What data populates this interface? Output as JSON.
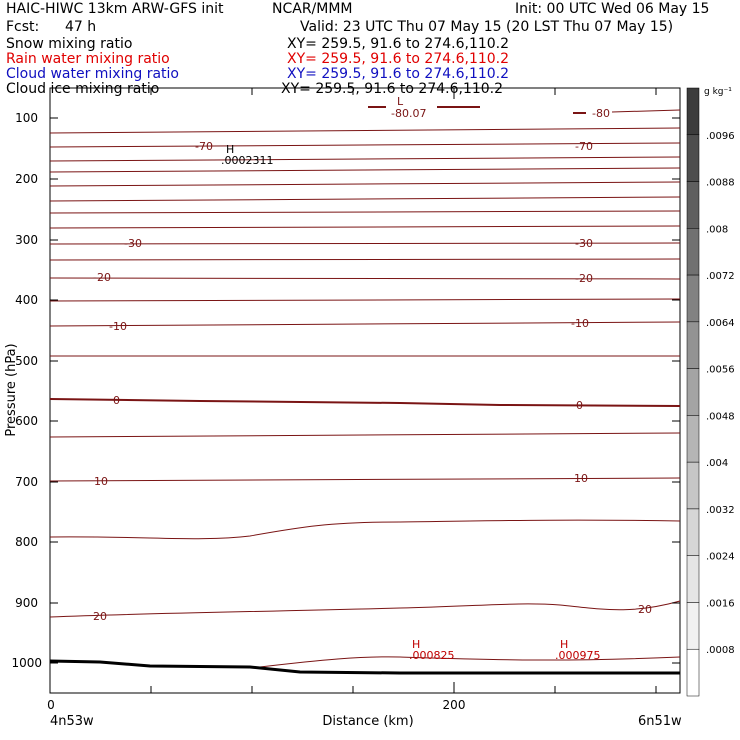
{
  "header": {
    "title_left": "HAIC-HIWC 13km ARW-GFS init",
    "org": "NCAR/MMM",
    "init": "Init: 00 UTC Wed 06 May 15",
    "fcst_label": "Fcst:",
    "fcst_value": "47 h",
    "valid": "Valid: 23 UTC Thu 07 May 15 (20 LST Thu 07 May 15)"
  },
  "fields": [
    {
      "name": "Snow mixing ratio",
      "xy": "XY= 259.5, 91.6 to 274.6,110.2",
      "color": "#000000"
    },
    {
      "name": "Rain water mixing ratio",
      "xy": "XY= 259.5, 91.6 to 274.6,110.2",
      "color": "#e00000"
    },
    {
      "name": "Cloud water mixing ratio",
      "xy": "XY= 259.5, 91.6 to 274.6,110.2",
      "color": "#1010c0"
    },
    {
      "name": "Cloud ice mixing ratio",
      "xy": "XY= 259.5, 91.6 to 274.6,110.2",
      "color": "#000000"
    }
  ],
  "chart_data": {
    "type": "contour cross-section",
    "xlabel": "Distance (km)",
    "ylabel": "Pressure (hPa)",
    "x_ticks": [
      "0",
      "200"
    ],
    "x_endpoints": [
      "4n53w",
      "6n51w"
    ],
    "x_range": [
      0,
      300
    ],
    "y_ticks": [
      "100",
      "200",
      "300",
      "400",
      "500",
      "600",
      "700",
      "800",
      "900",
      "1000"
    ],
    "y_range": [
      1050,
      50
    ],
    "colorbar": {
      "unit": "g kg⁻¹",
      "ticks": [
        ".0096",
        ".0088",
        ".008",
        ".0072",
        ".0064",
        ".0056",
        ".0048",
        ".004",
        ".0032",
        ".0024",
        ".0016",
        ".0008"
      ],
      "colors": [
        "#3c3c3c",
        "#4e4e4e",
        "#5f5f5f",
        "#717171",
        "#828282",
        "#939393",
        "#a4a4a4",
        "#b5b5b5",
        "#c6c6c6",
        "#d6d6d6",
        "#e5e5e5",
        "#f1f1f1",
        "#ffffff"
      ]
    },
    "temperature_contour_color": "#7a1414",
    "temperature_contour_labels": [
      {
        "text": "-80.07"
      },
      {
        "text": "-80"
      },
      {
        "text": "-70"
      },
      {
        "text": "-70"
      },
      {
        "text": "-30"
      },
      {
        "text": "-30"
      },
      {
        "text": "-20"
      },
      {
        "text": "-20"
      },
      {
        "text": "-10"
      },
      {
        "text": "-10"
      },
      {
        "text": "0"
      },
      {
        "text": "0"
      },
      {
        "text": "10"
      },
      {
        "text": "10"
      },
      {
        "text": "20"
      },
      {
        "text": "20"
      }
    ],
    "extrema": [
      {
        "mark": "L",
        "value": "",
        "color": "#7a1414"
      },
      {
        "mark": "H",
        "value": ".0002311",
        "color": "#000000"
      },
      {
        "mark": "H",
        "value": ".000825",
        "color": "#c00000"
      },
      {
        "mark": "H",
        "value": ".000975",
        "color": "#c00000"
      }
    ]
  }
}
